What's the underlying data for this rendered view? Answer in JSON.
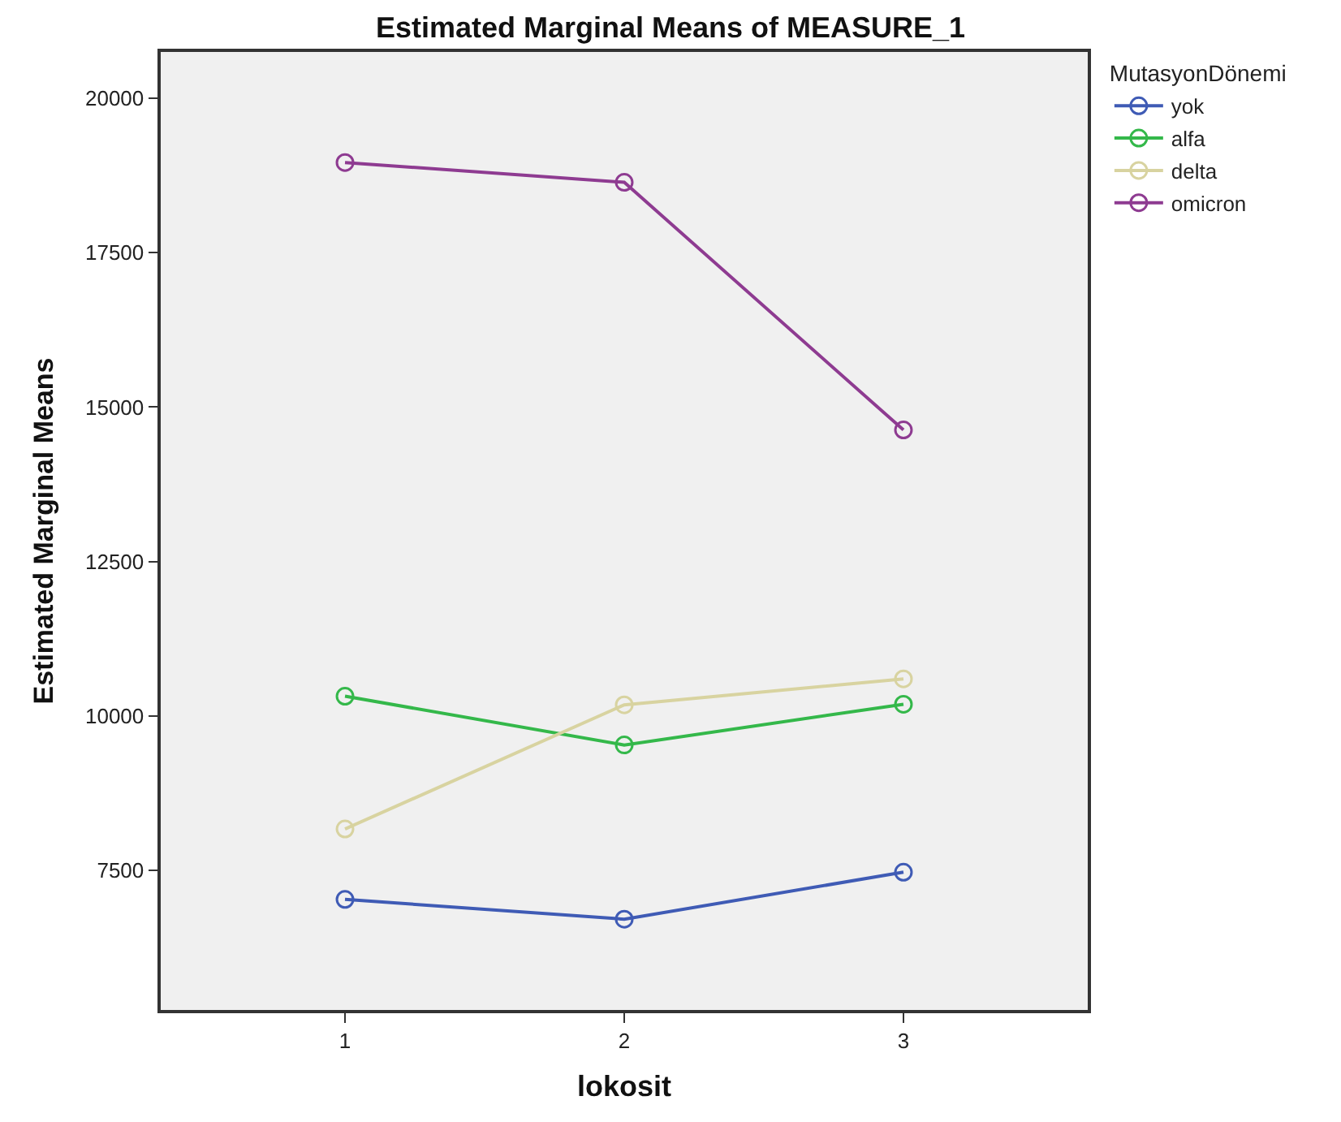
{
  "chart_data": {
    "type": "line",
    "title": "Estimated Marginal Means of MEASURE_1",
    "xlabel": "lokosit",
    "ylabel": "Estimated Marginal Means",
    "legend_title": "MutasyonDönemi",
    "x": [
      1,
      2,
      3
    ],
    "xlim": [
      0.34,
      3.66
    ],
    "xticks": [
      1,
      2,
      3
    ],
    "ylim": [
      5240,
      20750
    ],
    "yticks": [
      7500,
      10000,
      12500,
      15000,
      17500,
      20000
    ],
    "series": [
      {
        "name": "yok",
        "color": "#3f5bb5",
        "values": [
          7030,
          6710,
          7470
        ]
      },
      {
        "name": "alfa",
        "color": "#34b84a",
        "values": [
          10320,
          9530,
          10190
        ]
      },
      {
        "name": "delta",
        "color": "#d8d3a0",
        "values": [
          8170,
          10180,
          10600
        ]
      },
      {
        "name": "omicron",
        "color": "#8e3b91",
        "values": [
          18960,
          18640,
          14630
        ]
      }
    ],
    "marker": "circle",
    "grid": false,
    "legend": "top right"
  }
}
